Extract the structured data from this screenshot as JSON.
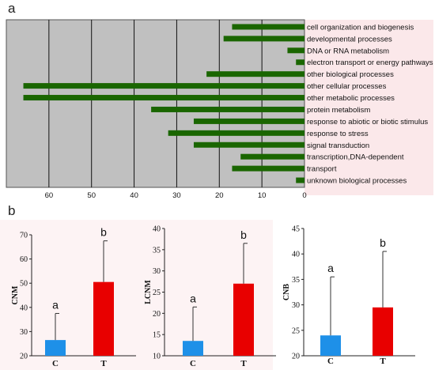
{
  "panel_a_letter": "a",
  "panel_b_letter": "b",
  "chart_data": [
    {
      "type": "bar",
      "orientation": "horizontal",
      "x_reversed": true,
      "xlim": [
        0,
        70
      ],
      "xticks": [
        60,
        50,
        40,
        30,
        20,
        10,
        0
      ],
      "grid": "vertical lines at x ticks",
      "background": "#c0c0c0",
      "bar_color": "#1a6600",
      "categories": [
        "cell organization and biogenesis",
        "developmental processes",
        "DNA or RNA metabolism",
        "electron transport or energy pathways",
        "other biological processes",
        "other cellular processes",
        "other metabolic processes",
        "protein metabolism",
        "response to abiotic or biotic stimulus",
        "response to stress",
        "signal transduction",
        "transcription,DNA-dependent",
        "transport",
        "unknown biological processes"
      ],
      "values": [
        17,
        19,
        4,
        2,
        23,
        66,
        66,
        36,
        26,
        32,
        26,
        15,
        17,
        2
      ]
    },
    {
      "type": "bar",
      "categories": [
        "C",
        "T"
      ],
      "values": [
        26.5,
        50.5
      ],
      "errors": [
        11,
        17
      ],
      "colors": [
        "#1e90e8",
        "#e80000"
      ],
      "significance": [
        "a",
        "b"
      ],
      "ylabel": "CNM",
      "ylim": [
        20,
        70
      ],
      "yticks": [
        20,
        30,
        40,
        50,
        60,
        70
      ]
    },
    {
      "type": "bar",
      "categories": [
        "C",
        "T"
      ],
      "values": [
        13.5,
        27
      ],
      "errors": [
        8,
        9.5
      ],
      "colors": [
        "#1e90e8",
        "#e80000"
      ],
      "significance": [
        "a",
        "b"
      ],
      "ylabel": "LCNM",
      "ylim": [
        10,
        40
      ],
      "yticks": [
        10,
        15,
        20,
        25,
        30,
        35,
        40
      ]
    },
    {
      "type": "bar",
      "categories": [
        "C",
        "T"
      ],
      "values": [
        24,
        29.5
      ],
      "errors": [
        11.5,
        11
      ],
      "colors": [
        "#1e90e8",
        "#e80000"
      ],
      "significance": [
        "a",
        "b"
      ],
      "ylabel": "CNB",
      "ylim": [
        20,
        45
      ],
      "yticks": [
        20,
        25,
        30,
        35,
        40,
        45
      ]
    }
  ]
}
